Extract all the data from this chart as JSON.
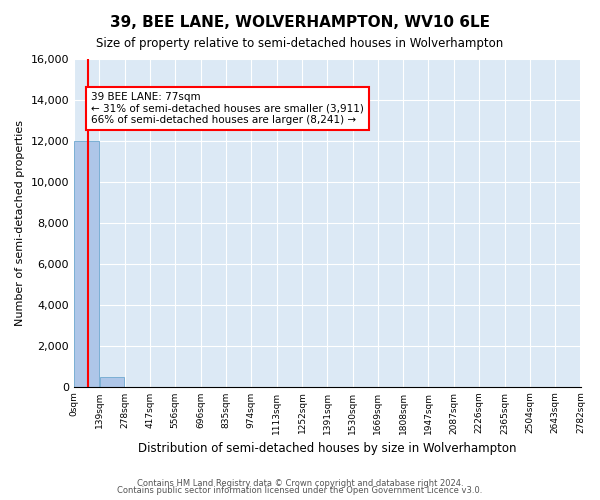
{
  "title": "39, BEE LANE, WOLVERHAMPTON, WV10 6LE",
  "subtitle": "Size of property relative to semi-detached houses in Wolverhampton",
  "xlabel": "Distribution of semi-detached houses by size in Wolverhampton",
  "ylabel": "Number of semi-detached properties",
  "bar_color": "#aec6e8",
  "bar_edge_color": "#7bafd4",
  "property_size": 77,
  "property_label": "39 BEE LANE: 77sqm",
  "pct_smaller": 31,
  "pct_larger": 66,
  "n_smaller": 3911,
  "n_larger": 8241,
  "vline_color": "red",
  "annotation_box_color": "white",
  "annotation_box_edge": "red",
  "bin_width": 139,
  "bins": [
    0,
    139,
    278,
    417,
    556,
    696,
    835,
    974,
    1113,
    1252,
    1391,
    1530,
    1669,
    1808,
    1947,
    2087,
    2226,
    2365,
    2504,
    2643,
    2782
  ],
  "counts": [
    12000,
    450,
    0,
    0,
    0,
    0,
    0,
    0,
    0,
    0,
    0,
    0,
    0,
    0,
    0,
    0,
    0,
    0,
    0,
    0
  ],
  "ylim": [
    0,
    16000
  ],
  "yticks": [
    0,
    2000,
    4000,
    6000,
    8000,
    10000,
    12000,
    14000,
    16000
  ],
  "background_color": "#dce9f5",
  "grid_color": "white",
  "footer_line1": "Contains HM Land Registry data © Crown copyright and database right 2024.",
  "footer_line2": "Contains public sector information licensed under the Open Government Licence v3.0."
}
